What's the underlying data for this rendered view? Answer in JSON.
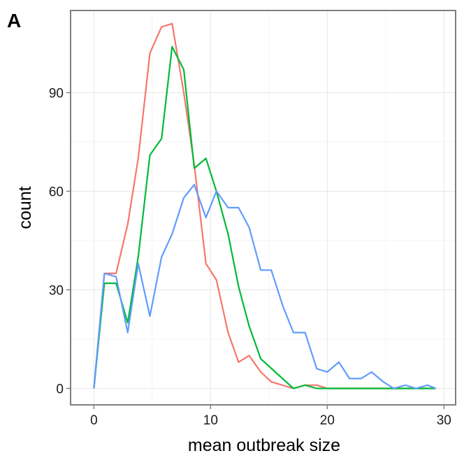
{
  "panel_label": "A",
  "chart_data": {
    "type": "line",
    "title": "",
    "xlabel": "mean outbreak size",
    "ylabel": "count",
    "xlim": [
      -2,
      31
    ],
    "ylim": [
      -5,
      115
    ],
    "xticks": [
      0,
      10,
      20,
      30
    ],
    "yticks": [
      0,
      30,
      60,
      90
    ],
    "grid": true,
    "series": [
      {
        "color": "#F8766D",
        "points": [
          [
            0,
            0
          ],
          [
            0.9,
            35
          ],
          [
            1.9,
            35
          ],
          [
            2.9,
            50
          ],
          [
            3.8,
            70
          ],
          [
            4.8,
            102
          ],
          [
            5.8,
            110
          ],
          [
            6.7,
            111
          ],
          [
            7.7,
            90
          ],
          [
            8.6,
            68
          ],
          [
            9.6,
            38
          ],
          [
            10.5,
            33
          ],
          [
            11.5,
            17
          ],
          [
            12.4,
            8
          ],
          [
            13.3,
            10
          ],
          [
            14.3,
            5
          ],
          [
            15.2,
            2
          ],
          [
            17.1,
            0
          ],
          [
            18.1,
            1
          ],
          [
            19.1,
            1
          ],
          [
            20,
            0
          ],
          [
            29.3,
            0
          ]
        ]
      },
      {
        "color": "#00BA38",
        "points": [
          [
            0,
            0
          ],
          [
            0.9,
            32
          ],
          [
            1.9,
            32
          ],
          [
            2.9,
            20
          ],
          [
            3.8,
            40
          ],
          [
            4.8,
            71
          ],
          [
            5.8,
            76
          ],
          [
            6.7,
            104
          ],
          [
            7.7,
            97
          ],
          [
            8.6,
            67
          ],
          [
            9.6,
            70
          ],
          [
            10.5,
            60
          ],
          [
            11.5,
            47
          ],
          [
            12.4,
            31
          ],
          [
            13.3,
            19
          ],
          [
            14.3,
            9
          ],
          [
            17.1,
            0
          ],
          [
            18.1,
            1
          ],
          [
            19.1,
            0
          ],
          [
            29.3,
            0
          ]
        ]
      },
      {
        "color": "#619CFF",
        "points": [
          [
            0,
            0
          ],
          [
            0.9,
            35
          ],
          [
            1.9,
            34
          ],
          [
            2.9,
            17
          ],
          [
            3.8,
            38
          ],
          [
            4.8,
            22
          ],
          [
            5.8,
            40
          ],
          [
            6.7,
            47
          ],
          [
            7.7,
            58
          ],
          [
            8.6,
            62
          ],
          [
            9.6,
            52
          ],
          [
            10.5,
            60
          ],
          [
            11.5,
            55
          ],
          [
            12.4,
            55
          ],
          [
            13.3,
            49
          ],
          [
            14.3,
            36
          ],
          [
            15.2,
            36
          ],
          [
            16.2,
            25
          ],
          [
            17.1,
            17
          ],
          [
            18.1,
            17
          ],
          [
            19.1,
            6
          ],
          [
            20,
            5
          ],
          [
            21,
            8
          ],
          [
            21.9,
            3
          ],
          [
            22.9,
            3
          ],
          [
            23.8,
            5
          ],
          [
            24.8,
            2
          ],
          [
            25.7,
            0
          ],
          [
            26.7,
            1
          ],
          [
            27.6,
            0
          ],
          [
            28.6,
            1
          ],
          [
            29.3,
            0
          ]
        ]
      }
    ]
  }
}
